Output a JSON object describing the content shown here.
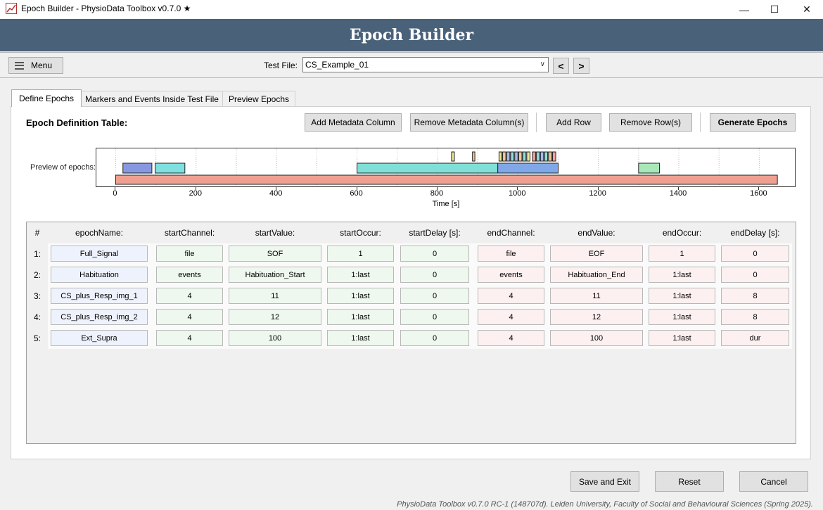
{
  "window": {
    "title": "Epoch Builder - PhysioData Toolbox v0.7.0 ★",
    "minimize": "—",
    "maximize": "☐",
    "close": "✕"
  },
  "banner": {
    "title": "Epoch Builder"
  },
  "toolbar": {
    "menu_label": "Menu",
    "test_file_label": "Test File:",
    "test_file_value": "CS_Example_01",
    "prev_label": "<",
    "next_label": ">"
  },
  "tabs": [
    {
      "label": "Define Epochs",
      "active": true
    },
    {
      "label": "Markers and Events Inside Test File",
      "active": false
    },
    {
      "label": "Preview Epochs",
      "active": false
    }
  ],
  "definition": {
    "title": "Epoch Definition Table:",
    "buttons": {
      "add_metadata": "Add Metadata Column",
      "remove_metadata": "Remove Metadata Column(s)",
      "add_row": "Add Row",
      "remove_row": "Remove Row(s)",
      "generate": "Generate Epochs"
    }
  },
  "preview": {
    "label": "Preview of epochs:",
    "chart_data": {
      "type": "bar",
      "xlabel": "Time [s]",
      "xlim": [
        -48,
        1692
      ],
      "xticks": [
        0,
        200,
        400,
        600,
        800,
        1000,
        1200,
        1400,
        1600
      ],
      "rows": [
        {
          "lane": "top",
          "epochs": [
            {
              "start": 835,
              "end": 842,
              "color": "#e8e890"
            },
            {
              "start": 887,
              "end": 893,
              "color": "#f0c890"
            },
            {
              "start": 953,
              "end": 960,
              "color": "#e8e890"
            },
            {
              "start": 962,
              "end": 970,
              "color": "#f0c890"
            },
            {
              "start": 972,
              "end": 980,
              "color": "#a8b8f0"
            },
            {
              "start": 982,
              "end": 990,
              "color": "#90e0e0"
            },
            {
              "start": 992,
              "end": 1000,
              "color": "#a8b8f0"
            },
            {
              "start": 1002,
              "end": 1010,
              "color": "#f0c890"
            },
            {
              "start": 1012,
              "end": 1020,
              "color": "#90e0e0"
            },
            {
              "start": 1022,
              "end": 1030,
              "color": "#e8e890"
            },
            {
              "start": 1036,
              "end": 1044,
              "color": "#f0a0a0"
            },
            {
              "start": 1046,
              "end": 1054,
              "color": "#90e0e0"
            },
            {
              "start": 1056,
              "end": 1064,
              "color": "#a8b8f0"
            },
            {
              "start": 1066,
              "end": 1074,
              "color": "#90e0e0"
            },
            {
              "start": 1076,
              "end": 1084,
              "color": "#f0c890"
            },
            {
              "start": 1086,
              "end": 1094,
              "color": "#f0a0a0"
            }
          ]
        },
        {
          "lane": "middle",
          "epochs": [
            {
              "start": 18,
              "end": 90,
              "color": "#8898e0"
            },
            {
              "start": 98,
              "end": 172,
              "color": "#80e0e0"
            },
            {
              "start": 600,
              "end": 950,
              "color": "#80e0d8"
            },
            {
              "start": 950,
              "end": 1100,
              "color": "#80a8e8"
            },
            {
              "start": 1300,
              "end": 1352,
              "color": "#a8e8b8"
            }
          ]
        },
        {
          "lane": "bottom",
          "epochs": [
            {
              "start": 0,
              "end": 1645,
              "color": "#f0a090"
            }
          ]
        }
      ]
    }
  },
  "table": {
    "index_header": "#",
    "columns": [
      "epochName:",
      "startChannel:",
      "startValue:",
      "startOccur:",
      "startDelay [s]:",
      "endChannel:",
      "endValue:",
      "endOccur:",
      "endDelay [s]:"
    ],
    "rows": [
      {
        "index": "1:",
        "cells": [
          "Full_Signal",
          "file",
          "SOF",
          "1",
          "0",
          "file",
          "EOF",
          "1",
          "0"
        ]
      },
      {
        "index": "2:",
        "cells": [
          "Habituation",
          "events",
          "Habituation_Start",
          "1:last",
          "0",
          "events",
          "Habituation_End",
          "1:last",
          "0"
        ]
      },
      {
        "index": "3:",
        "cells": [
          "CS_plus_Resp_img_1",
          "4",
          "11",
          "1:last",
          "0",
          "4",
          "11",
          "1:last",
          "8"
        ]
      },
      {
        "index": "4:",
        "cells": [
          "CS_plus_Resp_img_2",
          "4",
          "12",
          "1:last",
          "0",
          "4",
          "12",
          "1:last",
          "8"
        ]
      },
      {
        "index": "5:",
        "cells": [
          "Ext_Supra",
          "4",
          "100",
          "1:last",
          "0",
          "4",
          "100",
          "1:last",
          "dur"
        ]
      }
    ]
  },
  "footer": {
    "save_exit": "Save and Exit",
    "reset": "Reset",
    "cancel": "Cancel",
    "credits": "PhysioData Toolbox v0.7.0 RC-1 (148707d). Leiden University, Faculty of Social and Behavioural Sciences (Spring 2025)."
  }
}
